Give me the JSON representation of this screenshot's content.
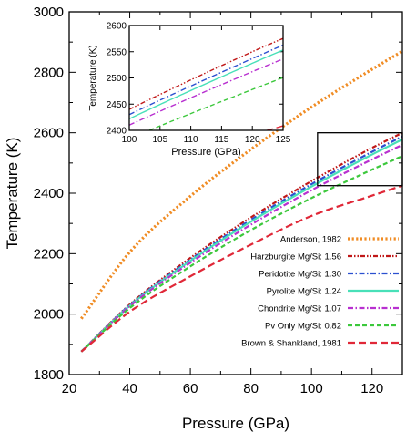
{
  "chart_data": [
    {
      "type": "line",
      "xlabel": "Pressure (GPa)",
      "ylabel": "Temperature (K)",
      "xlim": [
        20,
        130
      ],
      "ylim": [
        1800,
        3000
      ],
      "xticks": [
        20,
        40,
        60,
        80,
        100,
        120
      ],
      "yticks": [
        1800,
        2000,
        2200,
        2400,
        2600,
        2800,
        3000
      ],
      "legend_position": "bottom-right",
      "zoom_box": {
        "x": [
          102,
          130
        ],
        "y": [
          2425,
          2600
        ]
      },
      "series": [
        {
          "name": "Anderson, 1982",
          "color": "#F08C24",
          "dash": "dotted",
          "x": [
            24,
            40,
            60,
            80,
            100,
            120,
            130
          ],
          "y": [
            1985,
            2205,
            2390,
            2545,
            2685,
            2810,
            2870
          ]
        },
        {
          "name": "Harzburgite Mg/Si: 1.56",
          "color": "#C01818",
          "dash": "dashdotdot",
          "x": [
            24,
            40,
            60,
            80,
            100,
            120,
            130
          ],
          "y": [
            1876,
            2032,
            2186,
            2320,
            2440,
            2550,
            2600
          ]
        },
        {
          "name": "Peridotite Mg/Si: 1.30",
          "color": "#2B50D0",
          "dash": "dashdot",
          "x": [
            24,
            40,
            60,
            80,
            100,
            120,
            130
          ],
          "y": [
            1876,
            2030,
            2180,
            2312,
            2430,
            2537,
            2588
          ]
        },
        {
          "name": "Pyrolite Mg/Si: 1.24",
          "color": "#48E0B8",
          "dash": "solid",
          "x": [
            24,
            40,
            60,
            80,
            100,
            120,
            130
          ],
          "y": [
            1876,
            2028,
            2176,
            2306,
            2422,
            2528,
            2578
          ]
        },
        {
          "name": "Chondrite Mg/Si: 1.07",
          "color": "#B830D0",
          "dash": "dashdot",
          "x": [
            24,
            40,
            60,
            80,
            100,
            120,
            130
          ],
          "y": [
            1876,
            2026,
            2170,
            2296,
            2410,
            2512,
            2560
          ]
        },
        {
          "name": "Pv Only Mg/Si: 0.82",
          "color": "#3CC83C",
          "dash": "dashed",
          "x": [
            24,
            40,
            60,
            80,
            100,
            120,
            130
          ],
          "y": [
            1876,
            2020,
            2158,
            2278,
            2384,
            2478,
            2523
          ]
        },
        {
          "name": "Brown & Shankland, 1981",
          "color": "#E02838",
          "dash": "longdash",
          "x": [
            24,
            40,
            60,
            80,
            100,
            120,
            130
          ],
          "y": [
            1876,
            2008,
            2125,
            2230,
            2325,
            2392,
            2425
          ]
        }
      ]
    },
    {
      "type": "line",
      "xlabel": "Pressure (GPa)",
      "ylabel": "Temperature (K)",
      "xlim": [
        100,
        125
      ],
      "ylim": [
        2400,
        2600
      ],
      "xticks": [
        100,
        105,
        110,
        115,
        120,
        125
      ],
      "yticks": [
        2400,
        2450,
        2500,
        2550,
        2600
      ],
      "series_ref": "same as main chart, zoomed"
    }
  ]
}
